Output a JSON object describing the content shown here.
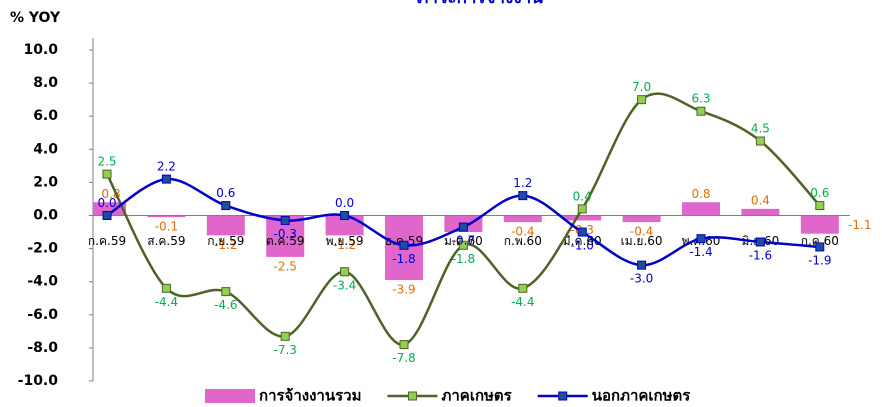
{
  "chart_data": {
    "type": "bar-line",
    "title": "ภาวะการจ้างงาน",
    "y_label": "% YOY",
    "categories": [
      "ก.ค.59",
      "ส.ค.59",
      "ก.ย.59",
      "ต.ค.59",
      "พ.ย.59",
      "ธ.ค.59",
      "ม.ค.60",
      "ก.พ.60",
      "มี.ค.60",
      "เม.ย.60",
      "พ.ค.60",
      "มิ.ย.60",
      "ก.ค.60"
    ],
    "series": [
      {
        "name": "การจ้างงานรวม",
        "type": "bar",
        "color": "#e066cc",
        "label_color": "#e46c0a",
        "values": [
          0.8,
          -0.1,
          -1.2,
          -2.5,
          -1.2,
          -3.9,
          -1.0,
          -0.4,
          -0.3,
          -0.4,
          0.8,
          0.4,
          -1.1
        ],
        "value_labels": [
          "0.8",
          "-0.1",
          "-1.2",
          "-2.5",
          "-1.2",
          "-3.9",
          "-1.0",
          "-0.4",
          "-0.3",
          "-0.4",
          "0.8",
          "0.4",
          "-1.1"
        ]
      },
      {
        "name": "ภาคเกษตร",
        "type": "line",
        "color": "#4f6228",
        "marker_color": "#92d050",
        "label_color": "#00b050",
        "values": [
          2.5,
          -4.4,
          -4.6,
          -7.3,
          -3.4,
          -7.8,
          -1.8,
          -4.4,
          0.4,
          7.0,
          6.3,
          4.5,
          0.6
        ],
        "value_labels": [
          "2.5",
          "-4.4",
          "-4.6",
          "-7.3",
          "-3.4",
          "-7.8",
          "-1.8",
          "-4.4",
          "0.4",
          "7.0",
          "6.3",
          "4.5",
          "0.6"
        ]
      },
      {
        "name": "นอกภาคเกษตร",
        "type": "line",
        "color": "#0000cc",
        "marker_color": "#1f4e99",
        "label_color": "#0000cc",
        "values": [
          0.0,
          2.2,
          0.6,
          -0.3,
          0.0,
          -1.8,
          -0.7,
          1.2,
          -1.0,
          -3.0,
          -1.4,
          -1.6,
          -1.9
        ],
        "value_labels": [
          "0.0",
          "2.2",
          "0.6",
          "-0.3",
          "0.0",
          "-1.8",
          "-0.7",
          "1.2",
          "-1.0",
          "-3.0",
          "-1.4",
          "-1.6",
          "-1.9"
        ]
      }
    ],
    "ylim": [
      -10,
      10
    ],
    "yticks": [
      {
        "value": -10,
        "label": "-10.0"
      },
      {
        "value": -8,
        "label": "-8.0"
      },
      {
        "value": -6,
        "label": "-6.0"
      },
      {
        "value": -4,
        "label": "-4.0"
      },
      {
        "value": -2,
        "label": "-2.0"
      },
      {
        "value": 0,
        "label": "0.0"
      },
      {
        "value": 2,
        "label": "2.0"
      },
      {
        "value": 4,
        "label": "4.0"
      },
      {
        "value": 6,
        "label": "6.0"
      },
      {
        "value": 8,
        "label": "8.0"
      },
      {
        "value": 10,
        "label": "10.0"
      }
    ],
    "legend": "bottom"
  }
}
